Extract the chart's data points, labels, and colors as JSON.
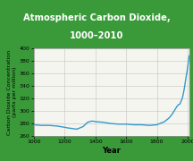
{
  "title_line1": "Atmospheric Carbon Dioxide,",
  "title_line2": "1000–2010",
  "xlabel": "Year",
  "ylabel": "Carbon Dioxide Concentration\n(parts per million)",
  "xlim": [
    1000,
    2010
  ],
  "ylim": [
    260,
    400
  ],
  "yticks": [
    260,
    280,
    300,
    320,
    340,
    360,
    380,
    400
  ],
  "xticks": [
    1000,
    1200,
    1400,
    1600,
    1800,
    2000
  ],
  "line_color": "#3399cc",
  "title_bg_color": "#3a9a3a",
  "title_text_color": "#ffffff",
  "border_color": "#3a9a3a",
  "background_color": "#f5f5f0",
  "plot_bg_color": "#f5f5f0",
  "grid_color": "#cccccc",
  "years": [
    1000,
    1050,
    1100,
    1150,
    1200,
    1220,
    1250,
    1280,
    1300,
    1320,
    1350,
    1380,
    1400,
    1450,
    1500,
    1550,
    1600,
    1650,
    1700,
    1750,
    1800,
    1850,
    1880,
    1900,
    1910,
    1920,
    1930,
    1940,
    1950,
    1960,
    1965,
    1970,
    1975,
    1980,
    1985,
    1990,
    1995,
    2000,
    2005,
    2010
  ],
  "co2": [
    278,
    277,
    277,
    276,
    274,
    273,
    272,
    271,
    273,
    275,
    282,
    284,
    283,
    282,
    280,
    279,
    279,
    278,
    278,
    277,
    278,
    283,
    289,
    295,
    299,
    303,
    307,
    310,
    311,
    317,
    320,
    325,
    331,
    338,
    346,
    354,
    361,
    369,
    379,
    388
  ]
}
